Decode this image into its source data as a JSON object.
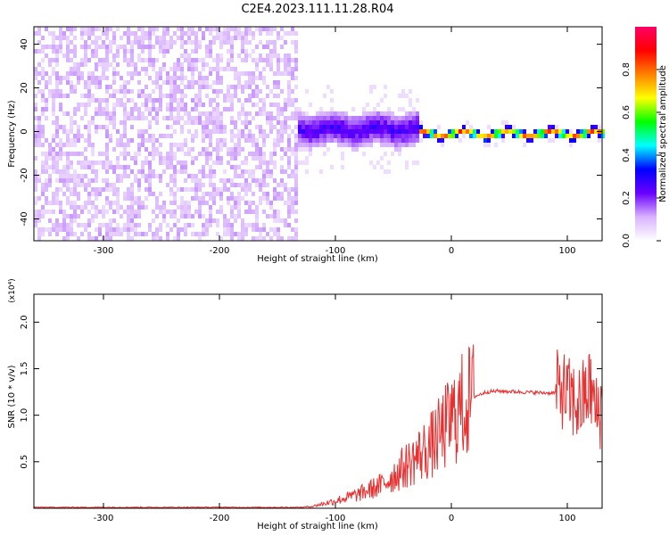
{
  "title": "C2E4.2023.111.11.28.R04",
  "chart_data": [
    {
      "type": "heatmap",
      "xlabel": "Height of straight line (km)",
      "ylabel": "Frequency (Hz)",
      "xlim": [
        -360,
        130
      ],
      "ylim": [
        -50,
        48
      ],
      "xticks": [
        -300,
        -200,
        -100,
        0,
        100
      ],
      "yticks": [
        -40,
        -20,
        0,
        20,
        40
      ],
      "colorbar": {
        "label": "Normalized spectral amplitude",
        "range": [
          0.0,
          1.0
        ],
        "ticks": [
          0.0,
          0.2,
          0.4,
          0.6,
          0.8
        ],
        "colormap": [
          "#ffffff",
          "#d9b3ff",
          "#6a00ff",
          "#0000ff",
          "#00ffff",
          "#00ff00",
          "#ffff00",
          "#ff8000",
          "#ff0000",
          "#ff0066"
        ]
      },
      "regions": [
        {
          "x_range": [
            -360,
            -135
          ],
          "freq_range": [
            -50,
            48
          ],
          "amplitude": 0.05,
          "pattern": "broadband noise"
        },
        {
          "x_range": [
            -135,
            -30
          ],
          "freq_center": 2,
          "freq_halfwidth": 8,
          "amplitude": 0.3,
          "pattern": "scattered band"
        },
        {
          "x_range": [
            -30,
            130
          ],
          "freq_center": 0,
          "freq_halfwidth": 2,
          "amplitude": 0.9,
          "pattern": "narrow line"
        }
      ]
    },
    {
      "type": "line",
      "xlabel": "Height of straight line (km)",
      "ylabel": "SNR (10 * v/v)",
      "y_multiplier": "(x10⁴)",
      "xlim": [
        -360,
        130
      ],
      "ylim": [
        0,
        2.3
      ],
      "xticks": [
        -300,
        -200,
        -100,
        0,
        100
      ],
      "yticks": [
        0.5,
        1.0,
        1.5,
        2.0
      ],
      "line_color": "#e83030",
      "series": [
        {
          "x": [
            -360,
            -300,
            -200,
            -130,
            -120,
            -100,
            -80,
            -60,
            -40,
            -25,
            -15,
            0,
            10,
            20,
            30,
            40,
            60,
            80,
            90,
            95,
            100,
            110,
            120,
            125,
            130
          ],
          "y": [
            0.01,
            0.01,
            0.01,
            0.01,
            0.02,
            0.08,
            0.15,
            0.25,
            0.45,
            0.6,
            0.7,
            0.95,
            1.1,
            1.2,
            1.25,
            1.26,
            1.25,
            1.24,
            1.24,
            1.3,
            1.2,
            1.1,
            1.3,
            1.0,
            1.1
          ]
        }
      ]
    }
  ]
}
